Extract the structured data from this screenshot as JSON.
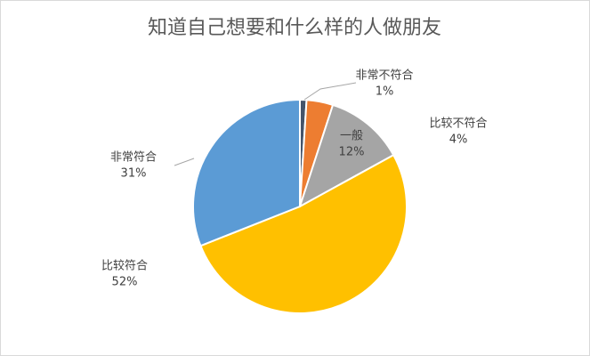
{
  "chart_data": {
    "type": "pie",
    "title": "知道自己想要和什么样的人做朋友",
    "categories": [
      "非常不符合",
      "比较不符合",
      "一般",
      "比较符合",
      "非常符合"
    ],
    "values": [
      1,
      4,
      12,
      52,
      31
    ],
    "value_labels": [
      "1%",
      "4%",
      "12%",
      "52%",
      "31%"
    ],
    "colors": [
      "#44546a",
      "#ed7d31",
      "#a5a5a5",
      "#ffc000",
      "#5b9bd5"
    ]
  }
}
